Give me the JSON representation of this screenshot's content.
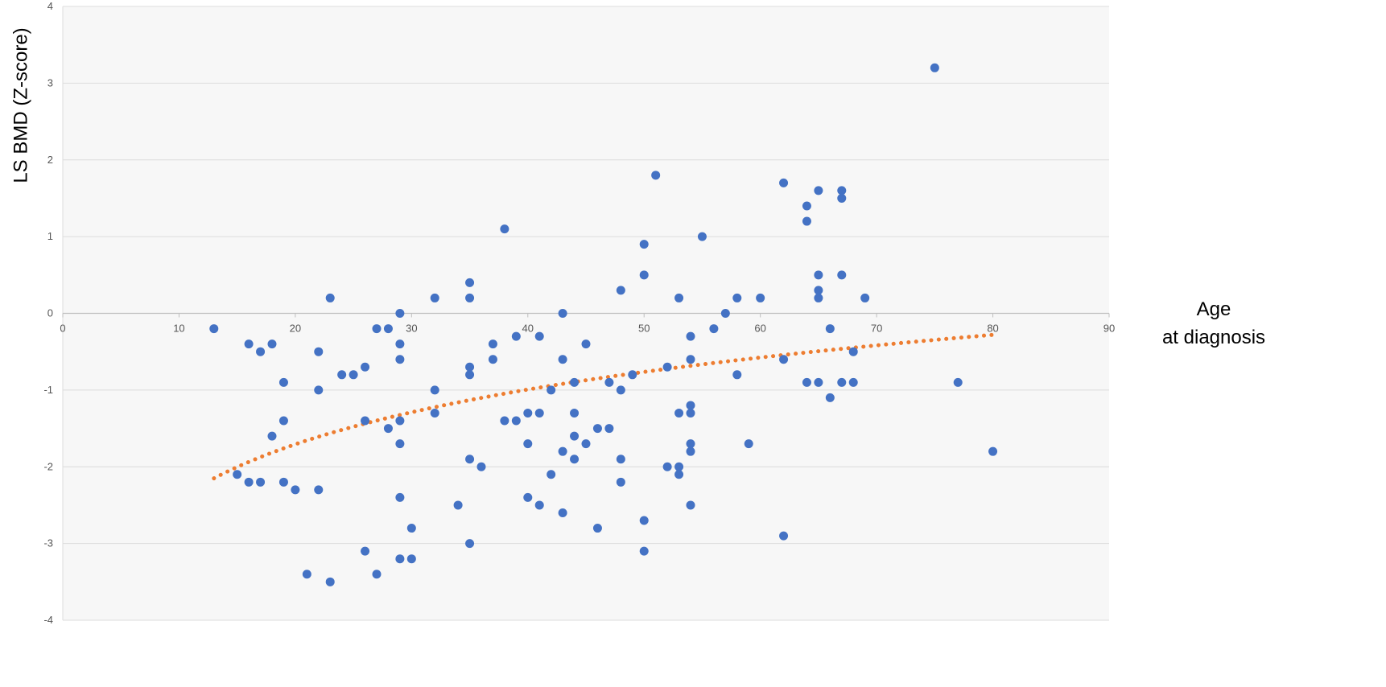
{
  "chart_data": {
    "type": "scatter",
    "xlabel_lines": [
      "Age",
      "at diagnosis"
    ],
    "ylabel": "LS BMD (Z-score)",
    "xlim": [
      0,
      90
    ],
    "ylim": [
      -4,
      4
    ],
    "x_ticks": [
      0,
      10,
      20,
      30,
      40,
      50,
      60,
      70,
      80,
      90
    ],
    "y_ticks": [
      4,
      3,
      2,
      1,
      0,
      -1,
      -2,
      -3,
      -4
    ],
    "grid": true,
    "legend": "none",
    "colors": {
      "points": "#4472c4",
      "trend": "#ed7d31",
      "plot_bg": "#f7f7f7",
      "grid": "#dcdcdc",
      "axis": "#bfbfbf"
    },
    "series": [
      {
        "values": [
          [
            13,
            -0.2
          ],
          [
            15,
            -2.1
          ],
          [
            16,
            -0.4
          ],
          [
            16,
            -2.2
          ],
          [
            17,
            -0.5
          ],
          [
            17,
            -2.2
          ],
          [
            18,
            -0.4
          ],
          [
            18,
            -1.6
          ],
          [
            19,
            -0.9
          ],
          [
            19,
            -1.4
          ],
          [
            19,
            -2.2
          ],
          [
            20,
            -2.3
          ],
          [
            21,
            -3.4
          ],
          [
            22,
            -0.5
          ],
          [
            22,
            -1.0
          ],
          [
            22,
            -2.3
          ],
          [
            23,
            0.2
          ],
          [
            23,
            -3.5
          ],
          [
            24,
            -0.8
          ],
          [
            25,
            -0.8
          ],
          [
            26,
            -0.7
          ],
          [
            26,
            -1.4
          ],
          [
            26,
            -3.1
          ],
          [
            27,
            -0.2
          ],
          [
            27,
            -3.4
          ],
          [
            28,
            -0.2
          ],
          [
            28,
            -1.5
          ],
          [
            29,
            0.0
          ],
          [
            29,
            -0.4
          ],
          [
            29,
            -0.6
          ],
          [
            29,
            -1.4
          ],
          [
            29,
            -1.7
          ],
          [
            29,
            -2.4
          ],
          [
            29,
            -3.2
          ],
          [
            30,
            -2.8
          ],
          [
            30,
            -3.2
          ],
          [
            32,
            0.2
          ],
          [
            32,
            -1.0
          ],
          [
            32,
            -1.3
          ],
          [
            34,
            -2.5
          ],
          [
            35,
            0.4
          ],
          [
            35,
            0.2
          ],
          [
            35,
            -0.7
          ],
          [
            35,
            -0.8
          ],
          [
            35,
            -1.9
          ],
          [
            35,
            -3.0
          ],
          [
            36,
            -2.0
          ],
          [
            37,
            -0.4
          ],
          [
            37,
            -0.6
          ],
          [
            38,
            1.1
          ],
          [
            38,
            -1.4
          ],
          [
            39,
            -0.3
          ],
          [
            39,
            -1.4
          ],
          [
            40,
            -1.3
          ],
          [
            40,
            -1.7
          ],
          [
            40,
            -2.4
          ],
          [
            41,
            -0.3
          ],
          [
            41,
            -1.3
          ],
          [
            41,
            -2.5
          ],
          [
            42,
            -1.0
          ],
          [
            42,
            -2.1
          ],
          [
            43,
            0.0
          ],
          [
            43,
            -0.6
          ],
          [
            43,
            -1.8
          ],
          [
            43,
            -2.6
          ],
          [
            44,
            -0.9
          ],
          [
            44,
            -1.3
          ],
          [
            44,
            -1.6
          ],
          [
            44,
            -1.9
          ],
          [
            45,
            -0.4
          ],
          [
            45,
            -1.7
          ],
          [
            46,
            -1.5
          ],
          [
            46,
            -2.8
          ],
          [
            47,
            -0.9
          ],
          [
            47,
            -1.5
          ],
          [
            48,
            0.3
          ],
          [
            48,
            -1.0
          ],
          [
            48,
            -1.9
          ],
          [
            48,
            -2.2
          ],
          [
            49,
            -0.8
          ],
          [
            50,
            0.9
          ],
          [
            50,
            0.5
          ],
          [
            50,
            -2.7
          ],
          [
            50,
            -3.1
          ],
          [
            51,
            1.8
          ],
          [
            52,
            -0.7
          ],
          [
            52,
            -2.0
          ],
          [
            53,
            0.2
          ],
          [
            53,
            -1.3
          ],
          [
            53,
            -2.0
          ],
          [
            53,
            -2.1
          ],
          [
            54,
            -0.3
          ],
          [
            54,
            -0.6
          ],
          [
            54,
            -1.2
          ],
          [
            54,
            -1.3
          ],
          [
            54,
            -1.7
          ],
          [
            54,
            -1.8
          ],
          [
            54,
            -2.5
          ],
          [
            55,
            1.0
          ],
          [
            56,
            -0.2
          ],
          [
            57,
            0.0
          ],
          [
            58,
            0.2
          ],
          [
            58,
            -0.8
          ],
          [
            59,
            -1.7
          ],
          [
            60,
            0.2
          ],
          [
            62,
            1.7
          ],
          [
            62,
            -0.6
          ],
          [
            62,
            -2.9
          ],
          [
            64,
            1.4
          ],
          [
            64,
            1.2
          ],
          [
            64,
            -0.9
          ],
          [
            65,
            1.6
          ],
          [
            65,
            0.5
          ],
          [
            65,
            0.3
          ],
          [
            65,
            0.2
          ],
          [
            65,
            -0.9
          ],
          [
            66,
            -0.2
          ],
          [
            66,
            -1.1
          ],
          [
            67,
            1.6
          ],
          [
            67,
            1.5
          ],
          [
            67,
            0.5
          ],
          [
            67,
            -0.9
          ],
          [
            68,
            -0.5
          ],
          [
            68,
            -0.9
          ],
          [
            69,
            0.2
          ],
          [
            75,
            3.2
          ],
          [
            77,
            -0.9
          ],
          [
            80,
            -1.8
          ]
        ]
      }
    ],
    "trendline": {
      "type": "logarithmic",
      "x_range": [
        13,
        80
      ],
      "y_at_start": -2.15,
      "y_at_end": -0.28
    }
  }
}
